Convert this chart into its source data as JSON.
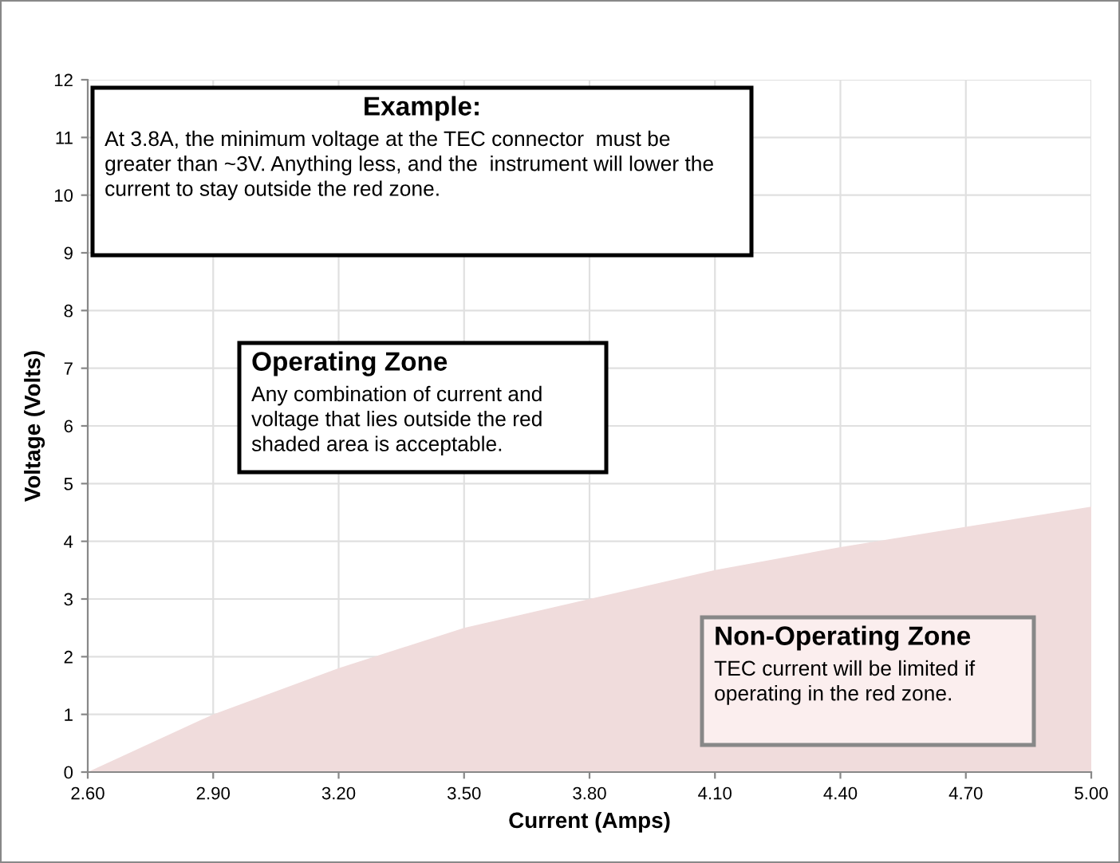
{
  "chart_data": {
    "type": "area",
    "xlabel": "Current (Amps)",
    "ylabel": "Voltage (Volts)",
    "x": [
      2.6,
      2.9,
      3.2,
      3.5,
      3.8,
      4.1,
      4.4,
      4.7,
      5.0
    ],
    "series": [
      {
        "color": "#f0dcdc",
        "values": [
          0,
          1.0,
          1.8,
          2.5,
          3.0,
          3.5,
          3.9,
          4.25,
          4.6
        ]
      }
    ],
    "xlim": [
      2.6,
      5.0
    ],
    "xticks": [
      {
        "value": 2.6,
        "label": "2.60"
      },
      {
        "value": 2.9,
        "label": "2.90"
      },
      {
        "value": 3.2,
        "label": "3.20"
      },
      {
        "value": 3.5,
        "label": "3.50"
      },
      {
        "value": 3.8,
        "label": "3.80"
      },
      {
        "value": 4.1,
        "label": "4.10"
      },
      {
        "value": 4.4,
        "label": "4.40"
      },
      {
        "value": 4.7,
        "label": "4.70"
      },
      {
        "value": 5.0,
        "label": "5.00"
      }
    ],
    "ylim": [
      0,
      12
    ],
    "yticks": [
      0,
      1,
      2,
      3,
      4,
      5,
      6,
      7,
      8,
      9,
      10,
      11,
      12
    ],
    "grid": true,
    "legend": false,
    "annotations": [
      "Example:",
      "At 3.8A, the minimum voltage at the TEC connector  must be greater than ~3V. Anything less, and the  instrument will lower the current to stay outside the red zone.",
      "Operating Zone",
      "Any combination of current and voltage that lies outside the red shaded area is acceptable.",
      "Non-Operating Zone",
      "TEC current will be limited if operating in the red zone."
    ]
  }
}
